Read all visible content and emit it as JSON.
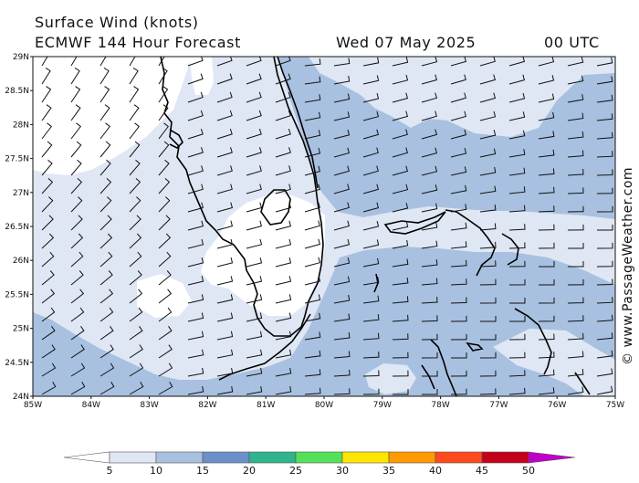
{
  "header": {
    "title": "Surface Wind (knots)",
    "model": "ECMWF 144 Hour Forecast",
    "date": "Wed 07 May 2025",
    "time": "00 UTC"
  },
  "credit": "© www.PassageWeather.com",
  "map": {
    "lat_labels": [
      "29N",
      "28.5N",
      "28N",
      "27.5N",
      "27N",
      "26.5N",
      "26N",
      "25.5N",
      "25N",
      "24.5N",
      "24N"
    ],
    "lon_labels": [
      "85W",
      "84W",
      "83W",
      "82W",
      "81W",
      "80W",
      "79W",
      "78W",
      "77W",
      "76W",
      "75W"
    ],
    "colors": {
      "lt5": "#ffffff",
      "5to10": "#dfe7f4",
      "10to15": "#a9c1e0",
      "coast": "#000000",
      "barb": "#111111"
    }
  },
  "colorbar": {
    "labels": [
      "5",
      "10",
      "15",
      "20",
      "25",
      "30",
      "35",
      "40",
      "45",
      "50"
    ],
    "colors": [
      "#dfe7f4",
      "#a9c1e0",
      "#6b8fc9",
      "#2fb58e",
      "#55e05a",
      "#ffe600",
      "#ff9a00",
      "#ff4a1e",
      "#c4001a",
      "#c000c8"
    ]
  }
}
